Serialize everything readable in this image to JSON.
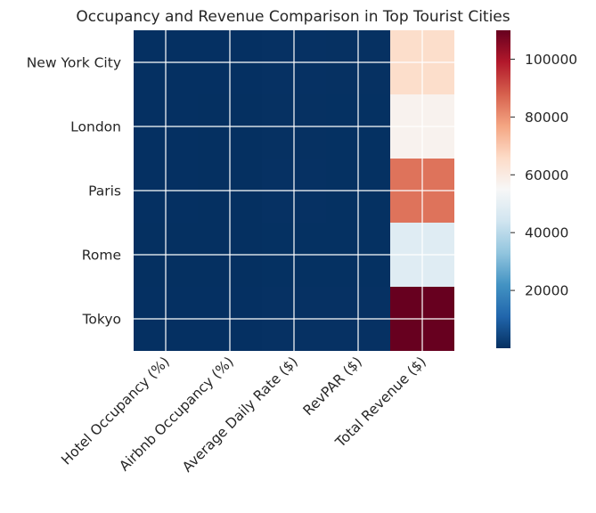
{
  "chart_data": {
    "type": "heatmap",
    "title": "Occupancy and Revenue Comparison in Top Tourist Cities",
    "xlabel": "",
    "ylabel": "",
    "columns": [
      "Hotel Occupancy (%)",
      "Airbnb Occupancy (%)",
      "Average Daily Rate ($)",
      "RevPAR ($)",
      "Total Revenue ($)"
    ],
    "rows": [
      "New York City",
      "London",
      "Paris",
      "Rome",
      "Tokyo"
    ],
    "values": [
      [
        85,
        75,
        250,
        212.5,
        65000
      ],
      [
        80,
        70,
        200,
        160,
        57000
      ],
      [
        75,
        65,
        220,
        165,
        85000
      ],
      [
        70,
        60,
        180,
        126,
        48000
      ],
      [
        90,
        80,
        300,
        270,
        110000
      ]
    ],
    "colorbar": {
      "colormap": "RdBu_r",
      "range": [
        0,
        110000
      ],
      "ticks": [
        20000,
        40000,
        60000,
        80000,
        100000
      ],
      "tick_labels": [
        "20000",
        "40000",
        "60000",
        "80000",
        "100000"
      ]
    },
    "grid": true
  }
}
